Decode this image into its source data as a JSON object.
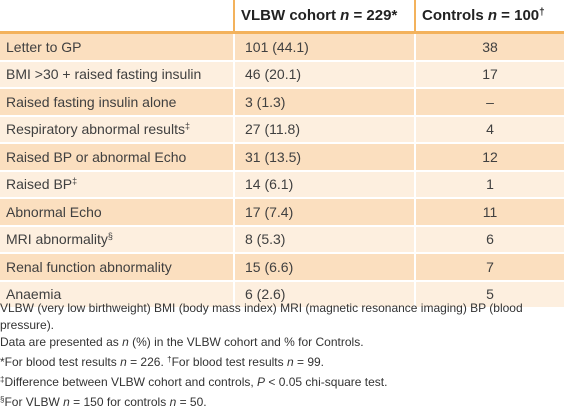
{
  "table": {
    "headers": {
      "col1": "",
      "col2_prefix": "VLBW cohort ",
      "col2_n": "n",
      "col2_suffix": " = 229*",
      "col3_prefix": "Controls ",
      "col3_n": "n",
      "col3_suffix": " = 100",
      "col3_mark": "†"
    },
    "rows": [
      {
        "label": "Letter to GP",
        "mark": "",
        "vlbw": "101 (44.1)",
        "controls": "38"
      },
      {
        "label": "BMI >30 + raised fasting insulin",
        "mark": "",
        "vlbw": "46 (20.1)",
        "controls": "17"
      },
      {
        "label": "Raised fasting insulin alone",
        "mark": "",
        "vlbw": "3 (1.3)",
        "controls": "–"
      },
      {
        "label": "Respiratory abnormal results",
        "mark": "‡",
        "vlbw": "27 (11.8)",
        "controls": "4"
      },
      {
        "label": "Raised BP or abnormal Echo",
        "mark": "",
        "vlbw": "31 (13.5)",
        "controls": "12"
      },
      {
        "label": "Raised BP",
        "mark": "‡",
        "vlbw": "14 (6.1)",
        "controls": "1"
      },
      {
        "label": "Abnormal Echo",
        "mark": "",
        "vlbw": "17 (7.4)",
        "controls": "11"
      },
      {
        "label": "MRI abnormality",
        "mark": "§",
        "vlbw": "8 (5.3)",
        "controls": "6"
      },
      {
        "label": "Renal function abnormality",
        "mark": "",
        "vlbw": "15 (6.6)",
        "controls": "7"
      },
      {
        "label": "Anaemia",
        "mark": "",
        "vlbw": "6 (2.6)",
        "controls": "5"
      }
    ]
  },
  "footnotes": {
    "abbrev": "VLBW (very low birthweight) BMI (body mass index) MRI (magnetic resonance imaging) BP (blood pressure).",
    "data_prefix": "Data are presented as ",
    "data_n": "n",
    "data_suffix": " (%) in the VLBW cohort and % for Controls.",
    "star_text_a": "*For blood test results ",
    "star_n1": "n",
    "star_text_b": " = 226. ",
    "dagger_mark": "†",
    "dagger_text_a": "For blood test results ",
    "dagger_n": "n",
    "dagger_text_b": " = 99.",
    "ddagger_mark": "‡",
    "ddagger_text_a": "Difference between VLBW cohort and controls, ",
    "ddagger_p": "P",
    "ddagger_text_b": " < 0.05 chi-square test.",
    "section_mark": "§",
    "section_text_a": "For VLBW ",
    "section_n1": "n",
    "section_text_b": " = 150 for controls ",
    "section_n2": "n",
    "section_text_c": " = 50."
  },
  "colors": {
    "header_rule": "#f3b25c",
    "row_dark": "#fbdfbf",
    "row_light": "#fdefdf"
  }
}
